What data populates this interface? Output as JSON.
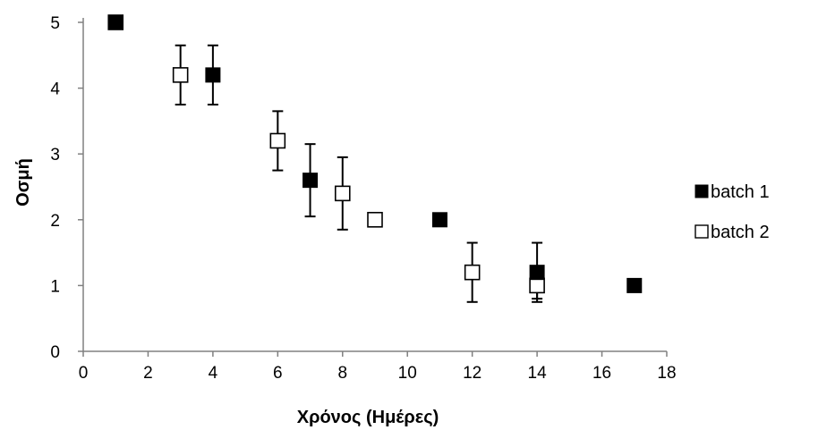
{
  "chart_data": {
    "type": "scatter",
    "title": "",
    "xlabel": "Χρόνος (Ημέρες)",
    "ylabel": "Οσμή",
    "xlim": [
      0,
      18
    ],
    "ylim": [
      0,
      5
    ],
    "xticks": [
      0,
      2,
      4,
      6,
      8,
      10,
      12,
      14,
      16,
      18
    ],
    "yticks": [
      0,
      1,
      2,
      3,
      4,
      5
    ],
    "grid": false,
    "legend_position": "right",
    "series": [
      {
        "name": "batch 1",
        "marker": "filled-square",
        "color": "#000000",
        "points": [
          {
            "x": 1,
            "y": 5,
            "err": 0
          },
          {
            "x": 4,
            "y": 4.2,
            "err": 0.45
          },
          {
            "x": 7,
            "y": 2.6,
            "err": 0.55
          },
          {
            "x": 11,
            "y": 2,
            "err": 0
          },
          {
            "x": 14,
            "y": 1.2,
            "err": 0.45
          },
          {
            "x": 17,
            "y": 1,
            "err": 0
          }
        ]
      },
      {
        "name": "batch 2",
        "marker": "open-square",
        "color": "#000000",
        "points": [
          {
            "x": 1,
            "y": 5,
            "err": 0
          },
          {
            "x": 3,
            "y": 4.2,
            "err": 0.45
          },
          {
            "x": 6,
            "y": 3.2,
            "err": 0.45
          },
          {
            "x": 8,
            "y": 2.4,
            "err": 0.55
          },
          {
            "x": 9,
            "y": 2,
            "err": 0
          },
          {
            "x": 12,
            "y": 1.2,
            "err": 0.45
          },
          {
            "x": 14,
            "y": 1,
            "err": 0.2
          }
        ]
      }
    ]
  }
}
